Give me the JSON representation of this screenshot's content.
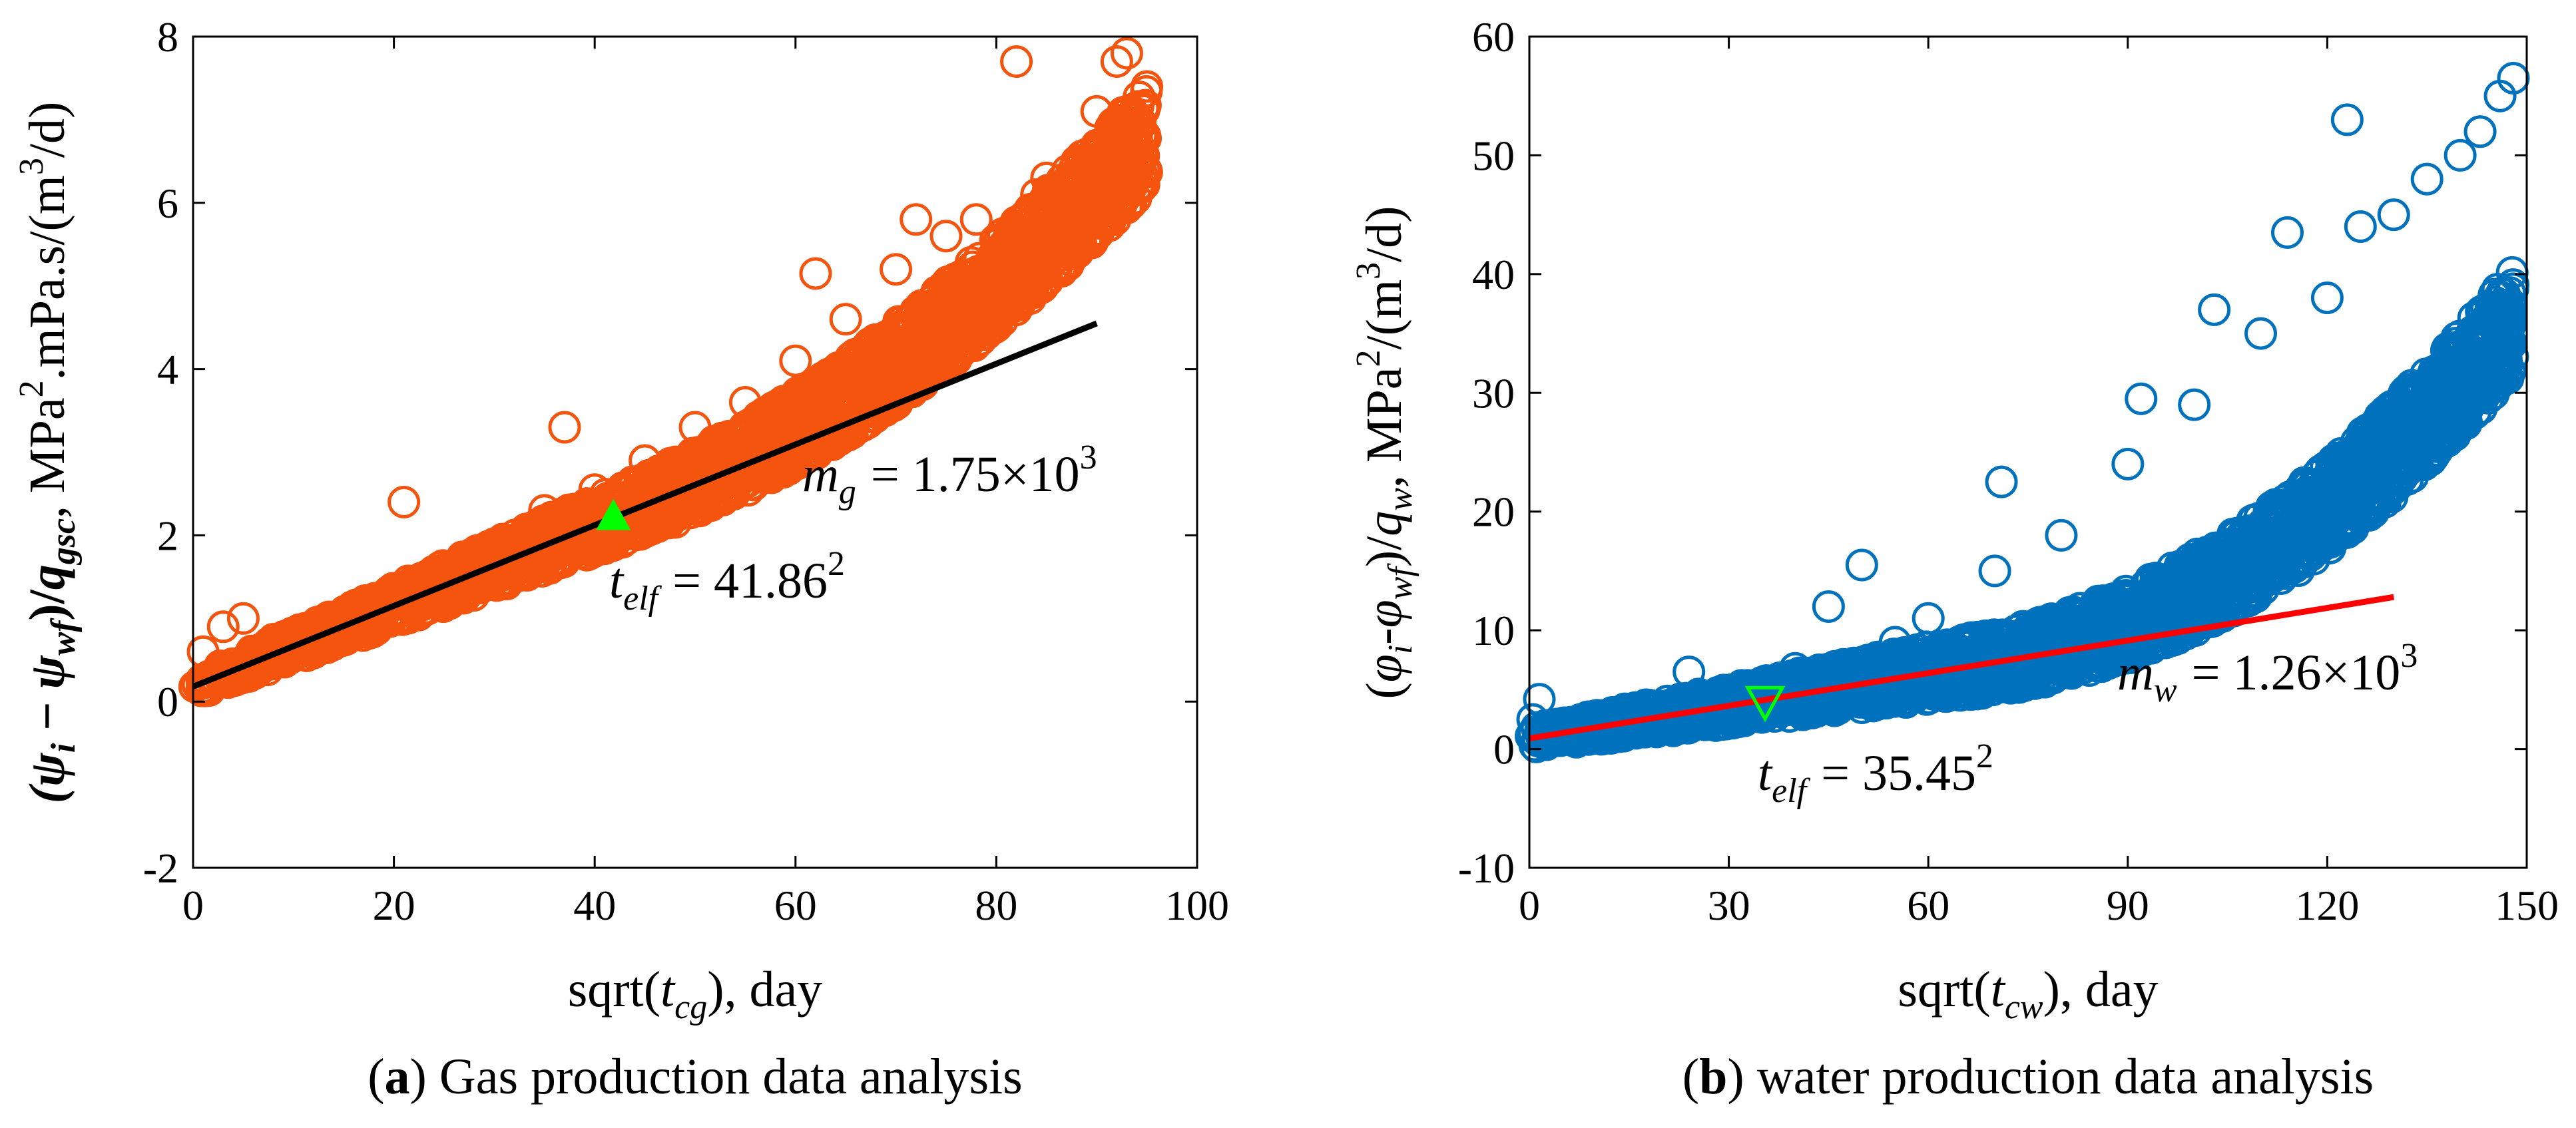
{
  "captions": {
    "a_tag": "a",
    "a_text": "Gas production data analysis",
    "b_tag": "b",
    "b_text": "water production data analysis"
  },
  "chart_data": [
    {
      "type": "scatter",
      "panel": "a",
      "title": "",
      "xlabel": "sqrt(t_cg), day",
      "ylabel": "(ψi − ψwf)/qgsc,  MPa².mPa.s/(m³/d)",
      "xlim": [
        0,
        100
      ],
      "ylim": [
        -2,
        8
      ],
      "xticks": [
        0,
        20,
        40,
        60,
        80,
        100
      ],
      "yticks": [
        -2,
        0,
        2,
        4,
        6,
        8
      ],
      "marker_color": "#F5540E",
      "line_color": "#000000",
      "trend": {
        "x": [
          0,
          90
        ],
        "y": [
          0.18,
          4.55
        ]
      },
      "point_sample": {
        "x": [
          1,
          3,
          5,
          8,
          12,
          15,
          20,
          21,
          25,
          30,
          35,
          37,
          40,
          41.86,
          45,
          50,
          55,
          60,
          62,
          65,
          70,
          72,
          75,
          78,
          80,
          82,
          84,
          85,
          88,
          90,
          92,
          93,
          95
        ],
        "y": [
          0.6,
          0.9,
          1.0,
          0.75,
          0.75,
          0.95,
          1.2,
          2.4,
          1.5,
          1.9,
          2.3,
          3.3,
          2.55,
          2.3,
          2.9,
          3.3,
          3.6,
          4.1,
          5.15,
          4.6,
          5.2,
          5.8,
          5.6,
          5.8,
          5.4,
          7.7,
          6.1,
          6.3,
          6.5,
          7.1,
          7.7,
          7.8,
          7.4
        ]
      },
      "marker": {
        "x": 41.86,
        "y": 2.23,
        "shape": "triangle-up",
        "color": "#00FF00"
      },
      "annotations": {
        "slope_label": "m",
        "slope_sub": "g",
        "slope_value": "= 1.75×10",
        "slope_exp": "3",
        "telf_label": "t",
        "telf_sub": "elf",
        "telf_value": "= 41.86",
        "telf_exp": "2"
      }
    },
    {
      "type": "scatter",
      "panel": "b",
      "title": "",
      "xlabel": "sqrt(t_cw), day",
      "ylabel": "(φi-φwf)/qw,  MPa²/(m³/d)",
      "xlim": [
        0,
        150
      ],
      "ylim": [
        -10,
        60
      ],
      "xticks": [
        0,
        30,
        60,
        90,
        120,
        150
      ],
      "yticks": [
        -10,
        0,
        10,
        20,
        30,
        40,
        50,
        60
      ],
      "marker_color": "#0072BD",
      "line_color": "#FF0000",
      "trend": {
        "x": [
          0,
          130
        ],
        "y": [
          0.9,
          12.8
        ]
      },
      "point_sample": {
        "x": [
          0.5,
          1.5,
          3,
          5,
          10,
          20,
          24,
          30,
          35.45,
          40,
          45,
          50,
          55,
          60,
          70,
          71,
          80,
          90,
          92,
          100,
          103,
          110,
          114,
          120,
          123,
          125,
          130,
          135,
          140,
          143,
          146,
          148
        ],
        "y": [
          2.5,
          4.2,
          1.8,
          1.5,
          2,
          3,
          6.5,
          4.6,
          4,
          6.8,
          12,
          15.5,
          9,
          11,
          15,
          22.5,
          18,
          24,
          29.5,
          29,
          37,
          35,
          43.5,
          38,
          53,
          44,
          45,
          48,
          50,
          52,
          55,
          56.5
        ]
      },
      "marker": {
        "x": 35.45,
        "y": 4.0,
        "shape": "triangle-down",
        "color": "#00FF00"
      },
      "annotations": {
        "slope_label": "m",
        "slope_sub": "w",
        "slope_value": "= 1.26×10",
        "slope_exp": "3",
        "telf_label": "t",
        "telf_sub": "elf",
        "telf_value": "= 35.45",
        "telf_exp": "2"
      }
    }
  ]
}
